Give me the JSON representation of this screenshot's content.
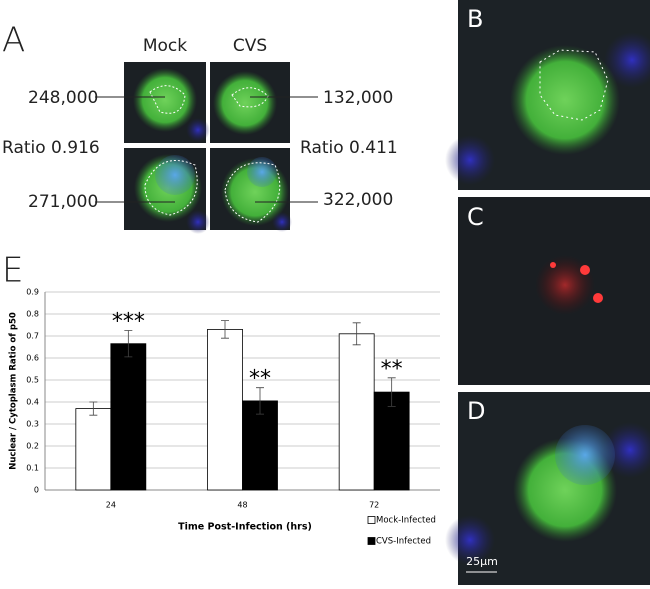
{
  "panel_a": {
    "label": "A",
    "column_labels": [
      "Mock",
      "CVS"
    ],
    "left_values": [
      "248,000",
      "271,000"
    ],
    "right_values": [
      "132,000",
      "322,000"
    ],
    "ratios": [
      "Ratio 0.916",
      "Ratio 0.411"
    ]
  },
  "panel_labels": [
    "B",
    "C",
    "D"
  ],
  "scale_bar": "25μm",
  "chart_data": {
    "type": "bar",
    "panel_label": "E",
    "categories": [
      "24",
      "48",
      "72"
    ],
    "series": [
      {
        "name": "Mock-Infected",
        "color": "#ffffff",
        "values": [
          0.37,
          0.73,
          0.71
        ],
        "errors": [
          0.03,
          0.04,
          0.05
        ]
      },
      {
        "name": "CVS-Infected",
        "color": "#000000",
        "values": [
          0.665,
          0.405,
          0.445
        ],
        "errors": [
          0.06,
          0.06,
          0.065
        ],
        "annotations": [
          "***",
          "**",
          "**"
        ]
      }
    ],
    "ylim": [
      0,
      0.9
    ],
    "yticks": [
      0,
      0.1,
      0.2,
      0.3,
      0.4,
      0.5,
      0.6,
      0.7,
      0.8,
      0.9
    ],
    "grid": true,
    "y_label": "Nuclear / Cytoplasm Ratio of p50",
    "x_label": "Time Post-Infection (hrs)"
  }
}
